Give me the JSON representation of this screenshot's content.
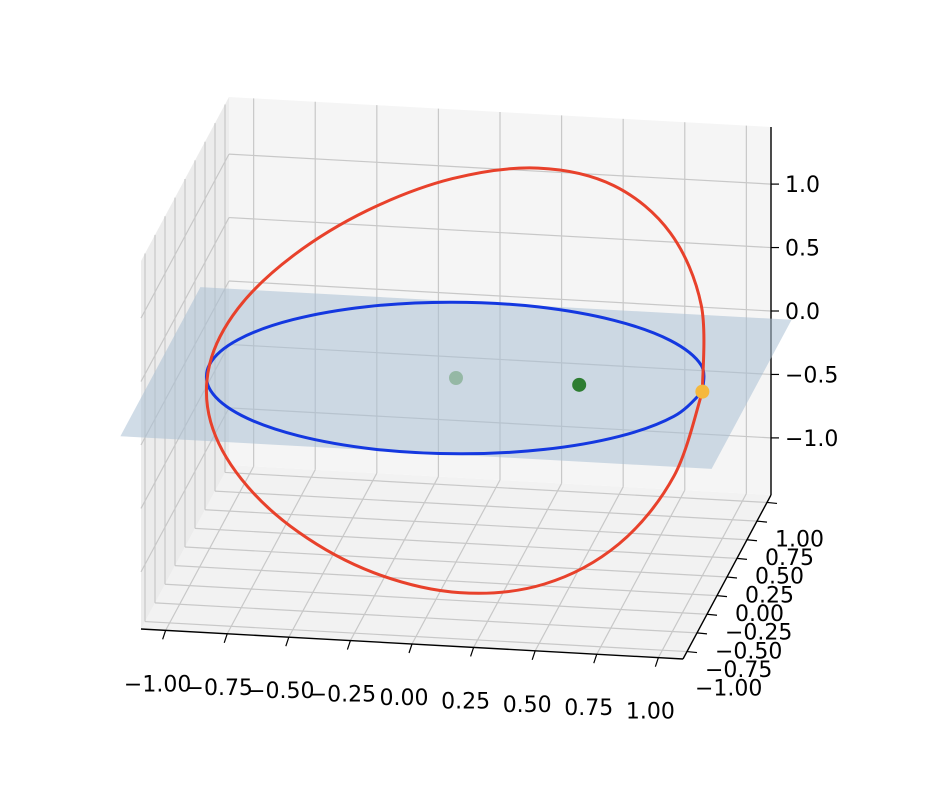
{
  "chart_data": {
    "type": "line3d",
    "xlim": [
      -1.1,
      1.1
    ],
    "ylim": [
      -1.1,
      1.1
    ],
    "zlim": [
      -1.45,
      1.45
    ],
    "xticks": [
      {
        "value": -1.0,
        "label": "−1.00"
      },
      {
        "value": -0.75,
        "label": "−0.75"
      },
      {
        "value": -0.5,
        "label": "−0.50"
      },
      {
        "value": -0.25,
        "label": "−0.25"
      },
      {
        "value": 0.0,
        "label": "0.00"
      },
      {
        "value": 0.25,
        "label": "0.25"
      },
      {
        "value": 0.5,
        "label": "0.50"
      },
      {
        "value": 0.75,
        "label": "0.75"
      },
      {
        "value": 1.0,
        "label": "1.00"
      }
    ],
    "yticks": [
      {
        "value": -1.0,
        "label": "−1.00"
      },
      {
        "value": -0.75,
        "label": "−0.75"
      },
      {
        "value": -0.5,
        "label": "−0.50"
      },
      {
        "value": -0.25,
        "label": "−0.25"
      },
      {
        "value": 0.0,
        "label": "0.00"
      },
      {
        "value": 0.25,
        "label": "0.25"
      },
      {
        "value": 0.5,
        "label": "0.50"
      },
      {
        "value": 0.75,
        "label": "0.75"
      },
      {
        "value": 1.0,
        "label": "1.00"
      }
    ],
    "zticks": [
      {
        "value": -1.0,
        "label": "−1.0"
      },
      {
        "value": -0.5,
        "label": "−0.5"
      },
      {
        "value": 0.0,
        "label": "0.0"
      },
      {
        "value": 0.5,
        "label": "0.5"
      },
      {
        "value": 1.0,
        "label": "1.0"
      }
    ],
    "grid": true,
    "plane": {
      "color": "#a9bfd3",
      "alpha": 0.55,
      "x": [
        -1.2,
        1.2
      ],
      "y": [
        -1.0,
        1.0
      ],
      "z": 0
    },
    "series": [
      {
        "type": "line",
        "color": "#1438e0",
        "x": [
          1,
          0.94,
          0.766,
          0.5,
          0.174,
          -0.174,
          -0.5,
          -0.766,
          -0.94,
          -1,
          -0.94,
          -0.766,
          -0.5,
          -0.174,
          0.174,
          0.5,
          0.766,
          0.94,
          1
        ],
        "y": [
          0,
          0.342,
          0.643,
          0.866,
          0.985,
          0.985,
          0.866,
          0.643,
          0.342,
          0,
          -0.342,
          -0.643,
          -0.866,
          -0.985,
          -0.985,
          -0.866,
          -0.643,
          -0.342,
          0
        ],
        "z": [
          0,
          0,
          0,
          0,
          0,
          0,
          0,
          0,
          0,
          0,
          0,
          0,
          0,
          0,
          0,
          0,
          0,
          0,
          0
        ]
      },
      {
        "type": "line",
        "color": "#e8412b",
        "x": [
          1,
          0.94,
          0.766,
          0.5,
          0.174,
          -0.174,
          -0.5,
          -0.766,
          -0.94,
          -1,
          -0.94,
          -0.766,
          -0.5,
          -0.174,
          0.174,
          0.5,
          0.766,
          0.94,
          1
        ],
        "y": [
          0,
          0.342,
          0.643,
          0.866,
          0.985,
          0.985,
          0.866,
          0.643,
          0.342,
          0,
          -0.342,
          -0.643,
          -0.866,
          -0.985,
          -0.985,
          -0.866,
          -0.643,
          -0.342,
          0
        ],
        "z": [
          0,
          0.472,
          0.847,
          1.061,
          1.094,
          0.974,
          0.758,
          0.503,
          0.247,
          0,
          -0.247,
          -0.503,
          -0.758,
          -0.974,
          -1.094,
          -1.061,
          -0.847,
          -0.472,
          0
        ]
      },
      {
        "type": "scatter",
        "color": "#2e7d32",
        "alpha": 0.35,
        "x": [
          0
        ],
        "y": [
          0
        ],
        "z": [
          0
        ]
      },
      {
        "type": "scatter",
        "color": "#2e7d32",
        "alpha": 1,
        "x": [
          0.5
        ],
        "y": [
          0
        ],
        "z": [
          0
        ]
      },
      {
        "type": "scatter",
        "color": "#f5b83d",
        "alpha": 1,
        "x": [
          1
        ],
        "y": [
          0
        ],
        "z": [
          0
        ]
      }
    ]
  }
}
